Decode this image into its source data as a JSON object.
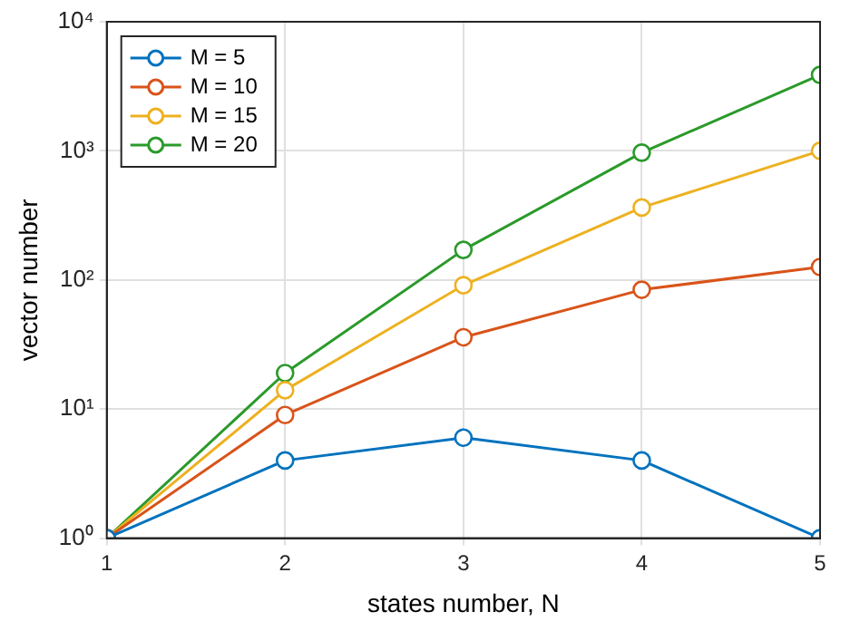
{
  "chart_data": {
    "type": "line",
    "xlabel": "states number, N",
    "ylabel": "vector number",
    "x": [
      1,
      2,
      3,
      4,
      5
    ],
    "xlim": [
      1,
      5
    ],
    "xticks": [
      1,
      2,
      3,
      4,
      5
    ],
    "log": "y",
    "ylim": [
      1,
      10000
    ],
    "yticks": [
      {
        "value": 1,
        "label": "10⁰"
      },
      {
        "value": 10,
        "label": "10¹"
      },
      {
        "value": 100,
        "label": "10²"
      },
      {
        "value": 1000,
        "label": "10³"
      },
      {
        "value": 10000,
        "label": "10⁴"
      }
    ],
    "grid": true,
    "legend": "top left",
    "marker": "circle",
    "line_style": "solid",
    "series": [
      {
        "name": "M = 5",
        "color": "#0072bd",
        "values": [
          1,
          4,
          6,
          4,
          1
        ]
      },
      {
        "name": "M = 10",
        "color": "#d95319",
        "values": [
          1,
          9,
          36,
          84,
          126
        ]
      },
      {
        "name": "M = 15",
        "color": "#edb120",
        "values": [
          1,
          14,
          91,
          364,
          1001
        ]
      },
      {
        "name": "M = 20",
        "color": "#2a9a2a",
        "values": [
          1,
          19,
          171,
          969,
          3876
        ]
      }
    ]
  }
}
